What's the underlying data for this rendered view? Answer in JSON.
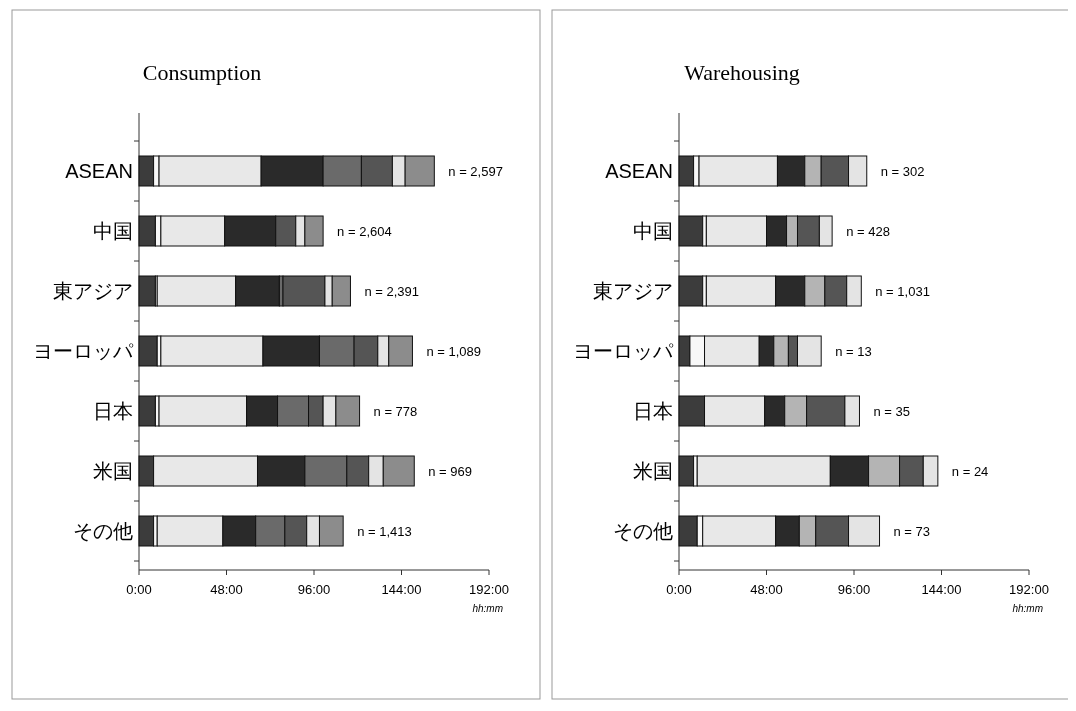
{
  "chart_data": [
    {
      "type": "bar",
      "orientation": "horizontal",
      "stacked": true,
      "title": "Consumption",
      "xlabel": "hh:mm",
      "categories": [
        "ASEAN",
        "中国",
        "東アジア",
        "ヨーロッパ",
        "日本",
        "米国",
        "その他"
      ],
      "xlim": [
        0,
        192
      ],
      "xticks": [
        {
          "value": 0,
          "label": "0:00"
        },
        {
          "value": 48,
          "label": "48:00"
        },
        {
          "value": 96,
          "label": "96:00"
        },
        {
          "value": 144,
          "label": "144:00"
        },
        {
          "value": 192,
          "label": "192:00"
        }
      ],
      "series": [
        {
          "color": "#3c3c3c",
          "values": [
            8,
            9,
            9,
            10,
            9,
            8,
            8
          ]
        },
        {
          "color": "#f8f8f8",
          "values": [
            3,
            3,
            1,
            2,
            2,
            0,
            2
          ]
        },
        {
          "color": "#e8e8e8",
          "values": [
            56,
            35,
            43,
            56,
            48,
            57,
            36
          ]
        },
        {
          "color": "#2a2a2a",
          "values": [
            34,
            28,
            24,
            31,
            17,
            26,
            18
          ]
        },
        {
          "color": "#6a6a6a",
          "values": [
            21,
            0,
            2,
            19,
            17,
            23,
            16
          ]
        },
        {
          "color": "#555555",
          "values": [
            17,
            11,
            23,
            13,
            8,
            12,
            12
          ]
        },
        {
          "color": "#e4e4e4",
          "values": [
            7,
            5,
            4,
            6,
            7,
            8,
            7
          ]
        },
        {
          "color": "#8c8c8c",
          "values": [
            16,
            10,
            10,
            13,
            13,
            17,
            13
          ]
        }
      ],
      "annotations": [
        {
          "text": "n = 2,597",
          "x": 162,
          "y": "ASEAN"
        },
        {
          "text": "n = 2,604",
          "x": 101,
          "y": "中国"
        },
        {
          "text": "n = 2,391",
          "x": 116,
          "y": "東アジア"
        },
        {
          "text": "n = 1,089",
          "x": 150,
          "y": "ヨーロッパ"
        },
        {
          "text": "n = 778",
          "x": 121,
          "y": "日本"
        },
        {
          "text": "n = 969",
          "x": 151,
          "y": "米国"
        },
        {
          "text": "n = 1,413",
          "x": 112,
          "y": "その他"
        }
      ]
    },
    {
      "type": "bar",
      "orientation": "horizontal",
      "stacked": true,
      "title": "Warehousing",
      "xlabel": "hh:mm",
      "categories": [
        "ASEAN",
        "中国",
        "東アジア",
        "ヨーロッパ",
        "日本",
        "米国",
        "その他"
      ],
      "xlim": [
        0,
        192
      ],
      "xticks": [
        {
          "value": 0,
          "label": "0:00"
        },
        {
          "value": 48,
          "label": "48:00"
        },
        {
          "value": 96,
          "label": "96:00"
        },
        {
          "value": 144,
          "label": "144:00"
        },
        {
          "value": 192,
          "label": "192:00"
        }
      ],
      "series": [
        {
          "color": "#3c3c3c",
          "values": [
            8,
            13,
            13,
            6,
            14,
            8,
            10
          ]
        },
        {
          "color": "#f8f8f8",
          "values": [
            3,
            2,
            2,
            8,
            0,
            2,
            3
          ]
        },
        {
          "color": "#e8e8e8",
          "values": [
            43,
            33,
            38,
            30,
            33,
            73,
            40
          ]
        },
        {
          "color": "#2a2a2a",
          "values": [
            15,
            11,
            16,
            8,
            11,
            21,
            13
          ]
        },
        {
          "color": "#b4b4b4",
          "values": [
            9,
            6,
            11,
            8,
            12,
            17,
            9
          ]
        },
        {
          "color": "#555555",
          "values": [
            15,
            12,
            12,
            5,
            21,
            13,
            18
          ]
        },
        {
          "color": "#e4e4e4",
          "values": [
            10,
            7,
            8,
            13,
            8,
            8,
            17
          ]
        }
      ],
      "annotations": [
        {
          "text": "n = 302",
          "x": 103,
          "y": "ASEAN"
        },
        {
          "text": "n = 428",
          "x": 84,
          "y": "中国"
        },
        {
          "text": "n = 1,031",
          "x": 100,
          "y": "東アジア"
        },
        {
          "text": "n = 13",
          "x": 78,
          "y": "ヨーロッパ"
        },
        {
          "text": "n = 35",
          "x": 99,
          "y": "日本"
        },
        {
          "text": "n = 24",
          "x": 142,
          "y": "米国"
        },
        {
          "text": "n = 73",
          "x": 110,
          "y": "その他"
        }
      ]
    }
  ]
}
